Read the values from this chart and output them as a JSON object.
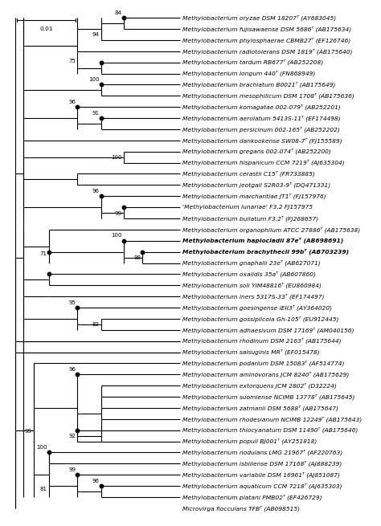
{
  "taxa": [
    [
      "Methylobacterium oryzae DSM 18207ᵀ (AY683045)",
      false
    ],
    [
      "Methylobacterium fujisawaense DSM 5686ᵀ (AB175634)",
      false
    ],
    [
      "Methylobacterium phylosphaerae CBMB27ᵀ (EF126746)",
      false
    ],
    [
      "Methylobacterium radiotolerans DSM 1819ᵀ (AB175640)",
      false
    ],
    [
      "Methylobacterium tardum RB677ᵀ (AB252208)",
      false
    ],
    [
      "Methylobacterium longum 440ᵀ (FN868949)",
      false
    ],
    [
      "Methylobacterium brachiatum B0021ᵀ (AB175649)",
      false
    ],
    [
      "Methylobacterium mesophilicum DSM 1708ᵀ (AB175636)",
      false
    ],
    [
      "Methylobacterium komagatae 002-079ᵀ (AB252201)",
      false
    ],
    [
      "Methylobacterium aerolatum 5413S-11ᵀ (EF174498)",
      false
    ],
    [
      "Methylobacterium persicinum 002-165ᵀ (AB252202)",
      false
    ],
    [
      "Methylobacterium dankookense SW08-7ᵀ (FJ155589)",
      false
    ],
    [
      "Methylobacterium gregans 002-074ᵀ (AB252200)",
      false
    ],
    [
      "Methylobacterium hispanicum CCM 7219ᵀ (AJ635304)",
      false
    ],
    [
      "Methylobacterium cerastii C15ᵀ (FR733885)",
      false
    ],
    [
      "Methylobacterium jeotgali S2R03-9ᵀ (DQ471331)",
      false
    ],
    [
      "Methylobacterium marchantiae JT1ᵀ (FJ157976)",
      false
    ],
    [
      "'Methylobacterium lunariae' F3.2 FJ157975",
      false
    ],
    [
      "Methylobacterium bullatum F3.2ᵀ (FJ268657)",
      false
    ],
    [
      "Methylobacterium organophilum ATCC 27886ᵀ (AB175638)",
      false
    ],
    [
      "Methylobacterium haplocladii 87eᵀ (AB698691)",
      true
    ],
    [
      "Methylobacterium brachythecii 99bᵀ (AB703239)",
      true
    ],
    [
      "Methylobacterium gnaphalii 23eᵀ (AB627071)",
      false
    ],
    [
      "Methylobacterium oxalidis 35aᵀ (AB607860)",
      false
    ],
    [
      "Methylobacterium soli YIM48816ᵀ (EU860984)",
      false
    ],
    [
      "Methylobacterium iners 5317S-33ᵀ (EF174497)",
      false
    ],
    [
      "Methylobacterium goesingense iEII3ᵀ (AY364020)",
      false
    ],
    [
      "Methylobacterium gossipiicola Gh-105ᵀ (EU912445)",
      false
    ],
    [
      "Methylobacterium adhaesivum DSM 17169ᵀ (AM040156)",
      false
    ],
    [
      "Methylobacterium rhodinum DSM 2163ᵀ (AB175644)",
      false
    ],
    [
      "Methylobacterium salsuginis MRᵀ (EF015478)",
      false
    ],
    [
      "Methylobacterium podarium DSM 15083ᵀ (AF514774)",
      false
    ],
    [
      "Methylobacterium aminovorans JCM 8240ᵀ (AB175629)",
      false
    ],
    [
      "Methylobacterium extorquens JCM 2802ᵀ (D32224)",
      false
    ],
    [
      "Methylobacterium suomiense NCIMB 13778ᵀ (AB175645)",
      false
    ],
    [
      "Methylobacterium zatmanii DSM 5688ᵀ (AB175647)",
      false
    ],
    [
      "Methylobacterium rhodesianum NCIMB 12249ᵀ (AB175643)",
      false
    ],
    [
      "Methylobacterium thiocyanatum DSM 11490ᵀ (AB175646)",
      false
    ],
    [
      "Methylobacterium populi BJ001ᵀ (AY251818)",
      false
    ],
    [
      "Methylobacterium nodulans LMG 21967ᵀ (AF220763)",
      false
    ],
    [
      "Methylobacterium isbiliense DSM 17168ᵀ (AJ888239)",
      false
    ],
    [
      "Methylobacterium variabile DSM 16961ᵀ (AJ851087)",
      false
    ],
    [
      "Methylobacterium aquaticum CCM 7218ᵀ (AJ635303)",
      false
    ],
    [
      "Methylobacterium platani PMB02ᵀ (EF426729)",
      false
    ],
    [
      "Microvirga flocculans TFBᵀ (AB098515)",
      false
    ]
  ],
  "scale_label": "0.01",
  "lw": 0.8,
  "fs_label": 5.4,
  "fs_boot": 5.0,
  "dot_size": 3.2
}
